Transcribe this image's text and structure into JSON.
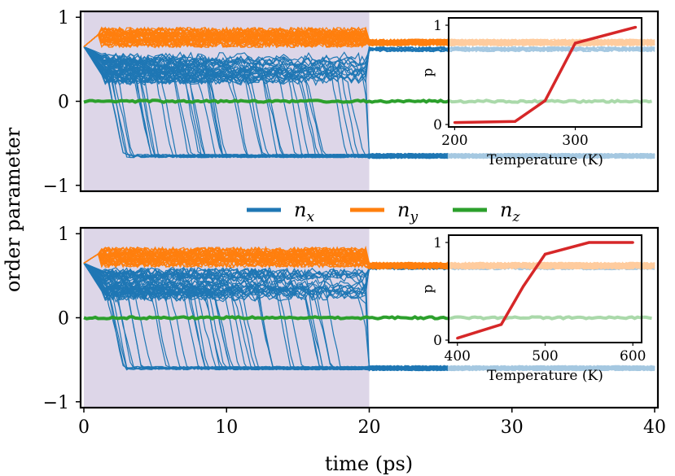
{
  "figure": {
    "ylabel": "order parameter",
    "xlabel": "time (ps)",
    "legend": [
      {
        "key": "nx",
        "main": "n",
        "sub": "x",
        "color": "#1f77b4"
      },
      {
        "key": "ny",
        "main": "n",
        "sub": "y",
        "color": "#ff7f0e"
      },
      {
        "key": "nz",
        "main": "n",
        "sub": "z",
        "color": "#2ca02c"
      }
    ],
    "shade_color": "#ddd6e8"
  },
  "chart_data": [
    {
      "type": "line",
      "panel": "top",
      "xlim": [
        0,
        40
      ],
      "ylim": [
        -1,
        1
      ],
      "xticks": [
        0,
        10,
        20,
        30,
        40
      ],
      "yticks": [
        -1,
        0,
        1
      ],
      "shaded_region": [
        0,
        20
      ],
      "series": [
        {
          "name": "n_x",
          "description": "many trajectories start ~0.65, most switch to ~-0.65 between 1 and 21 ps",
          "initial": 0.65,
          "final_switched": -0.65,
          "final_unswitched": 0.62
        },
        {
          "name": "n_y",
          "description": "rises to ~0.85 during pulse, relaxes to ~0.7 after 20 ps",
          "initial": 0.65,
          "pulse_level": 0.82,
          "final": 0.7
        },
        {
          "name": "n_z",
          "value": 0.0
        }
      ],
      "inset": {
        "type": "line",
        "xlabel": "Temperature (K)",
        "ylabel": "p",
        "xlim": [
          195,
          355
        ],
        "ylim": [
          0,
          1
        ],
        "xticks": [
          200,
          300
        ],
        "yticks": [
          0,
          1
        ],
        "x": [
          200,
          250,
          275,
          300,
          350
        ],
        "y": [
          0.02,
          0.03,
          0.24,
          0.82,
          0.98
        ],
        "color": "#d62728"
      }
    },
    {
      "type": "line",
      "panel": "bottom",
      "xlim": [
        0,
        40
      ],
      "ylim": [
        -1,
        1
      ],
      "xticks": [
        0,
        10,
        20,
        30,
        40
      ],
      "yticks": [
        -1,
        0,
        1
      ],
      "shaded_region": [
        0,
        20
      ],
      "series": [
        {
          "name": "n_x",
          "description": "trajectories start ~0.65, many switch to ~-0.6 between 1 and 21 ps",
          "initial": 0.65,
          "final_switched": -0.6,
          "final_unswitched": 0.6
        },
        {
          "name": "n_y",
          "description": "rises to ~0.8 during pulse, relaxes to ~0.62 after 20 ps",
          "initial": 0.65,
          "pulse_level": 0.78,
          "final": 0.62
        },
        {
          "name": "n_z",
          "value": 0.0
        }
      ],
      "inset": {
        "type": "line",
        "xlabel": "Temperature (K)",
        "ylabel": "p",
        "xlim": [
          390,
          610
        ],
        "ylim": [
          0,
          1
        ],
        "xticks": [
          400,
          500,
          600
        ],
        "yticks": [
          0,
          1
        ],
        "x": [
          400,
          450,
          475,
          500,
          550,
          600
        ],
        "y": [
          0.02,
          0.16,
          0.55,
          0.88,
          1.0,
          1.0
        ],
        "color": "#d62728"
      }
    }
  ]
}
